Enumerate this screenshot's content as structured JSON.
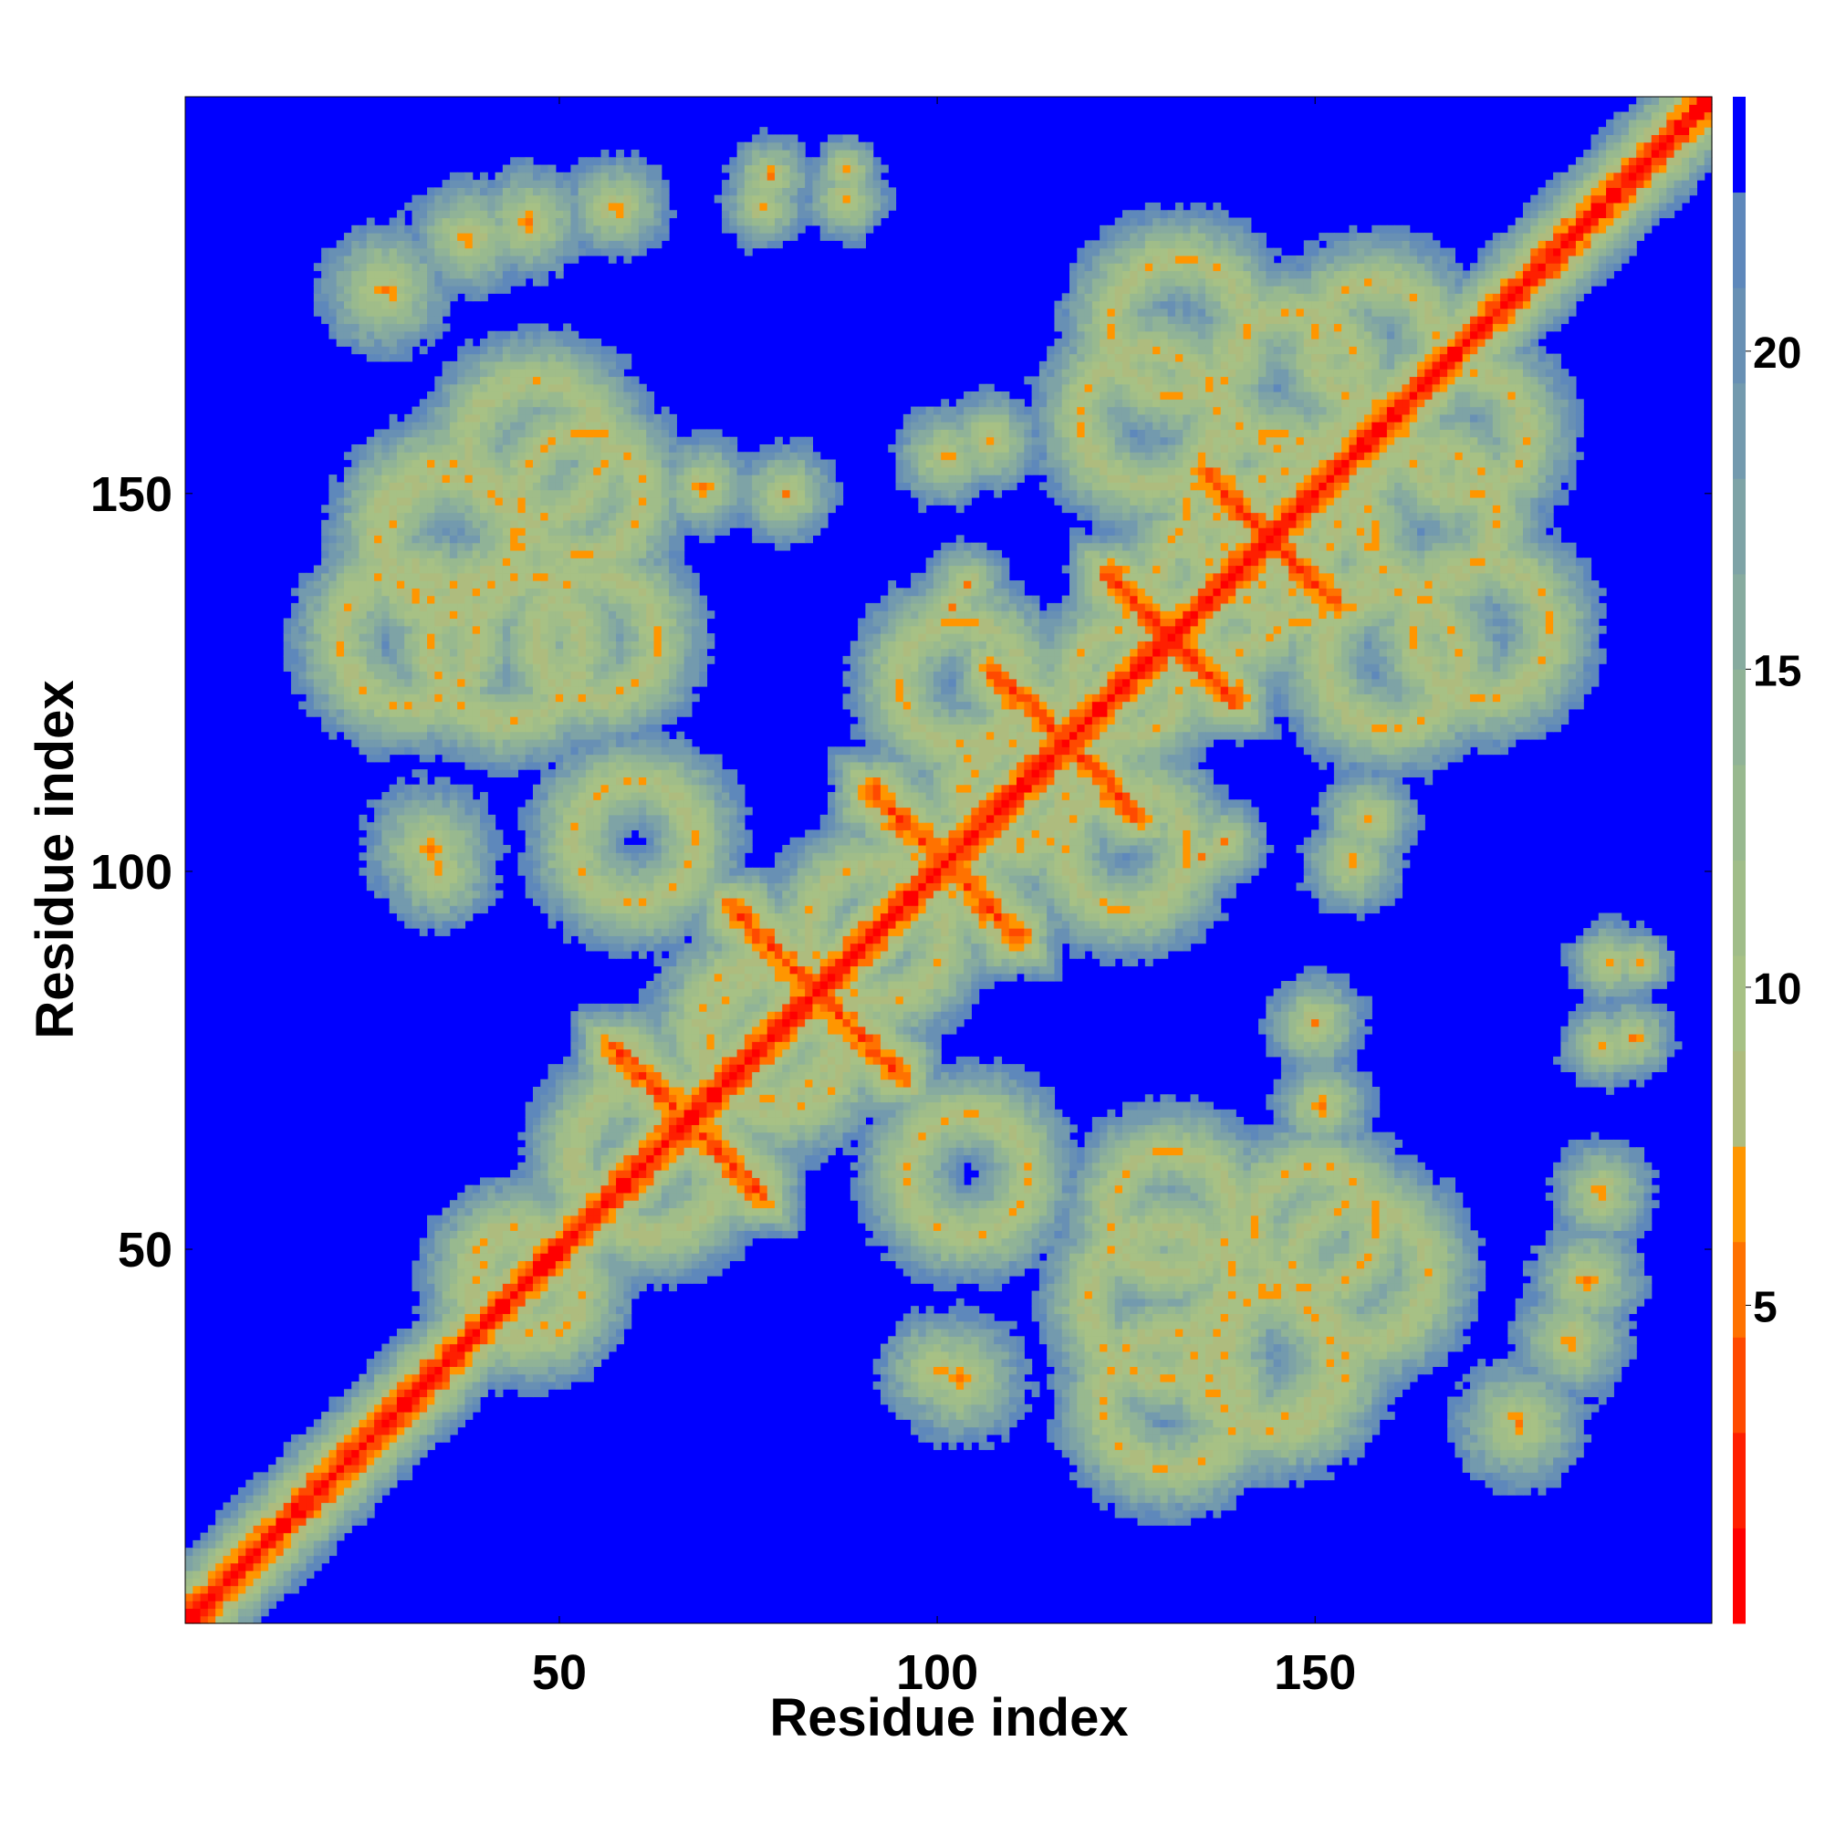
{
  "chart_data": {
    "type": "heatmap",
    "title": "",
    "xlabel": "Residue index",
    "ylabel": "Residue index",
    "x_range": [
      1,
      202
    ],
    "y_range": [
      1,
      202
    ],
    "n_residues": 202,
    "xticks": [
      50,
      100,
      150
    ],
    "yticks": [
      50,
      100,
      150
    ],
    "colorbar": {
      "ticks": [
        5,
        10,
        15,
        20
      ],
      "range": [
        0,
        24
      ],
      "levels": [
        {
          "max": 1.5,
          "color": "#ff0000"
        },
        {
          "max": 3,
          "color": "#ff1f00"
        },
        {
          "max": 4.5,
          "color": "#ff4a00"
        },
        {
          "max": 6,
          "color": "#ff7200"
        },
        {
          "max": 7.5,
          "color": "#ff9600"
        },
        {
          "max": 9,
          "color": "#aebc7e"
        },
        {
          "max": 10.5,
          "color": "#a7c185"
        },
        {
          "max": 12,
          "color": "#a0bd89"
        },
        {
          "max": 13.5,
          "color": "#98b98f"
        },
        {
          "max": 15,
          "color": "#90b397"
        },
        {
          "max": 16.5,
          "color": "#87ab9f"
        },
        {
          "max": 18,
          "color": "#7ea3a6"
        },
        {
          "max": 19.5,
          "color": "#739aae"
        },
        {
          "max": 21,
          "color": "#6890b4"
        },
        {
          "max": 22.5,
          "color": "#5e88bb"
        },
        {
          "max": 24,
          "color": "#0000ff"
        }
      ],
      "background_color": "#0000ff"
    },
    "contact_features": [
      {
        "kind": "diagonal",
        "from": 1,
        "to": 202
      },
      {
        "kind": "antiparallel",
        "center": [
          84,
          84
        ],
        "length": 16
      },
      {
        "kind": "antiparallel",
        "center": [
          101,
          101
        ],
        "length": 14
      },
      {
        "kind": "antiparallel",
        "center": [
          67,
          67
        ],
        "length": 14
      },
      {
        "kind": "antiparallel",
        "center": [
          117,
          117
        ],
        "length": 14
      },
      {
        "kind": "antiparallel",
        "center": [
          131,
          131
        ],
        "length": 12
      },
      {
        "kind": "antiparallel",
        "center": [
          144,
          144
        ],
        "length": 12
      },
      {
        "kind": "ring",
        "center": [
          77,
          79
        ],
        "radius": 9
      },
      {
        "kind": "ring",
        "center": [
          92,
          92
        ],
        "radius": 9
      },
      {
        "kind": "ring",
        "center": [
          110,
          111
        ],
        "radius": 7
      },
      {
        "kind": "ring",
        "center": [
          62,
          62
        ],
        "radius": 10
      },
      {
        "kind": "ring",
        "center": [
          138,
          138
        ],
        "radius": 9
      },
      {
        "kind": "ring",
        "center": [
          125,
          125
        ],
        "radius": 7
      },
      {
        "kind": "ring",
        "center": [
          46,
          45
        ],
        "radius": 7
      },
      {
        "kind": "ring",
        "center": [
          36,
          143
        ],
        "radius": 9
      },
      {
        "kind": "ring",
        "center": [
          30,
          131
        ],
        "radius": 9
      },
      {
        "kind": "ring",
        "center": [
          53,
          150
        ],
        "radius": 8
      },
      {
        "kind": "ring",
        "center": [
          130,
          43
        ],
        "radius": 10
      },
      {
        "kind": "ring",
        "center": [
          145,
          35
        ],
        "radius": 9
      },
      {
        "kind": "ring",
        "center": [
          156,
          47
        ],
        "radius": 9
      },
      {
        "kind": "ring",
        "center": [
          143,
          148
        ],
        "radius": 10
      },
      {
        "kind": "ring",
        "center": [
          132,
          172
        ],
        "radius": 9
      },
      {
        "kind": "ring",
        "center": [
          158,
          170
        ],
        "radius": 8
      },
      {
        "kind": "ring",
        "center": [
          165,
          147
        ],
        "radius": 9
      },
      {
        "kind": "ring",
        "center": [
          160,
          128
        ],
        "radius": 9
      },
      {
        "kind": "ring",
        "center": [
          60,
          104
        ],
        "radius": 8
      },
      {
        "kind": "ring",
        "center": [
          125,
          103
        ],
        "radius": 8
      },
      {
        "kind": "ring",
        "center": [
          55,
          131
        ],
        "radius": 8
      },
      {
        "kind": "blob",
        "center": [
          27,
          177
        ],
        "radius": 8
      },
      {
        "kind": "blob",
        "center": [
          46,
          186
        ],
        "radius": 7
      },
      {
        "kind": "blob",
        "center": [
          57,
          188
        ],
        "radius": 6
      },
      {
        "kind": "blob",
        "center": [
          77,
          188
        ],
        "radius": 5
      },
      {
        "kind": "blob",
        "center": [
          88,
          189
        ],
        "radius": 5
      },
      {
        "kind": "blob",
        "center": [
          33,
          103
        ],
        "radius": 8
      },
      {
        "kind": "blob",
        "center": [
          100,
          34
        ],
        "radius": 7
      },
      {
        "kind": "blob",
        "center": [
          184,
          38
        ],
        "radius": 7
      },
      {
        "kind": "blob",
        "center": [
          188,
          58
        ],
        "radius": 6
      },
      {
        "kind": "blob",
        "center": [
          192,
          78
        ],
        "radius": 5
      },
      {
        "kind": "blob",
        "center": [
          193,
          88
        ],
        "radius": 4
      },
      {
        "kind": "blob",
        "center": [
          150,
          80
        ],
        "radius": 6
      },
      {
        "kind": "blob",
        "center": [
          157,
          107
        ],
        "radius": 6
      },
      {
        "kind": "blob",
        "center": [
          138,
          104
        ],
        "radius": 5
      },
      {
        "kind": "blob",
        "center": [
          69,
          151
        ],
        "radius": 6
      },
      {
        "kind": "blob",
        "center": [
          101,
          155
        ],
        "radius": 6
      },
      {
        "kind": "blob",
        "center": [
          102,
          135
        ],
        "radius": 5
      }
    ]
  }
}
